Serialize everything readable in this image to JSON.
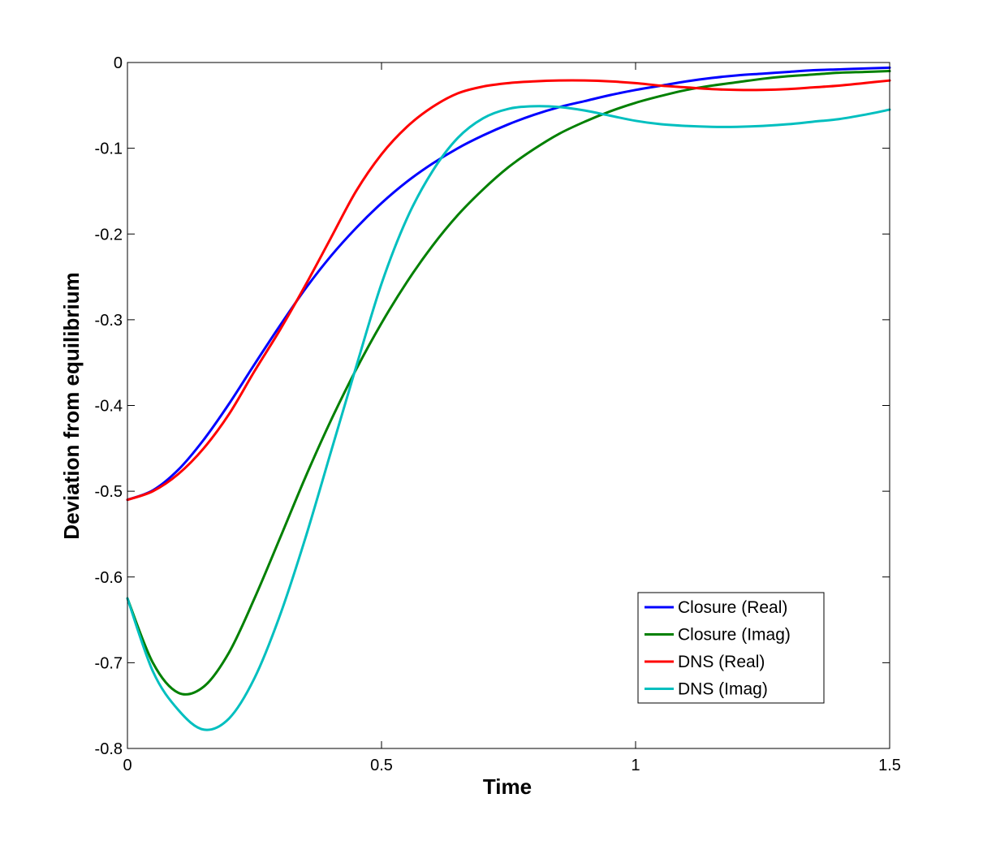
{
  "chart_data": {
    "type": "line",
    "title": "",
    "xlabel": "Time",
    "ylabel": "Deviation from equilibrium",
    "xlim": [
      0,
      1.5
    ],
    "ylim": [
      -0.8,
      0
    ],
    "xticks": [
      0,
      0.5,
      1,
      1.5
    ],
    "xtick_labels": [
      "0",
      "0.5",
      "1",
      "1.5"
    ],
    "yticks": [
      0,
      -0.1,
      -0.2,
      -0.3,
      -0.4,
      -0.5,
      -0.6,
      -0.7,
      -0.8
    ],
    "ytick_labels": [
      "0",
      "-0.1",
      "-0.2",
      "-0.3",
      "-0.4",
      "-0.5",
      "-0.6",
      "-0.7",
      "-0.8"
    ],
    "grid": false,
    "legend_position": "bottom-right",
    "x": [
      0,
      0.05,
      0.1,
      0.15,
      0.2,
      0.25,
      0.3,
      0.35,
      0.4,
      0.45,
      0.5,
      0.55,
      0.6,
      0.65,
      0.7,
      0.75,
      0.8,
      0.85,
      0.9,
      0.95,
      1.0,
      1.05,
      1.1,
      1.15,
      1.2,
      1.25,
      1.3,
      1.35,
      1.4,
      1.45,
      1.5
    ],
    "series": [
      {
        "name": "Closure (Real)",
        "color": "#0000ff",
        "values": [
          -0.51,
          -0.499,
          -0.475,
          -0.44,
          -0.398,
          -0.352,
          -0.307,
          -0.264,
          -0.226,
          -0.193,
          -0.164,
          -0.139,
          -0.118,
          -0.1,
          -0.085,
          -0.072,
          -0.061,
          -0.052,
          -0.045,
          -0.038,
          -0.032,
          -0.027,
          -0.022,
          -0.018,
          -0.015,
          -0.013,
          -0.011,
          -0.009,
          -0.008,
          -0.007,
          -0.006
        ]
      },
      {
        "name": "Closure (Imag)",
        "color": "#008000",
        "values": [
          -0.625,
          -0.7,
          -0.735,
          -0.728,
          -0.688,
          -0.625,
          -0.555,
          -0.484,
          -0.418,
          -0.358,
          -0.304,
          -0.256,
          -0.214,
          -0.178,
          -0.148,
          -0.122,
          -0.101,
          -0.083,
          -0.069,
          -0.057,
          -0.047,
          -0.039,
          -0.032,
          -0.027,
          -0.023,
          -0.019,
          -0.016,
          -0.014,
          -0.012,
          -0.011,
          -0.01
        ]
      },
      {
        "name": "DNS (Real)",
        "color": "#ff0000",
        "values": [
          -0.51,
          -0.5,
          -0.48,
          -0.45,
          -0.41,
          -0.36,
          -0.312,
          -0.26,
          -0.205,
          -0.15,
          -0.107,
          -0.075,
          -0.052,
          -0.036,
          -0.028,
          -0.024,
          -0.022,
          -0.021,
          -0.021,
          -0.022,
          -0.024,
          -0.027,
          -0.029,
          -0.031,
          -0.032,
          -0.032,
          -0.031,
          -0.029,
          -0.027,
          -0.024,
          -0.021
        ]
      },
      {
        "name": "DNS (Imag)",
        "color": "#00bfbf",
        "values": [
          -0.625,
          -0.71,
          -0.755,
          -0.778,
          -0.765,
          -0.718,
          -0.645,
          -0.555,
          -0.455,
          -0.355,
          -0.258,
          -0.182,
          -0.127,
          -0.088,
          -0.065,
          -0.054,
          -0.051,
          -0.052,
          -0.056,
          -0.062,
          -0.068,
          -0.072,
          -0.074,
          -0.075,
          -0.075,
          -0.074,
          -0.072,
          -0.069,
          -0.066,
          -0.061,
          -0.055
        ]
      }
    ]
  }
}
